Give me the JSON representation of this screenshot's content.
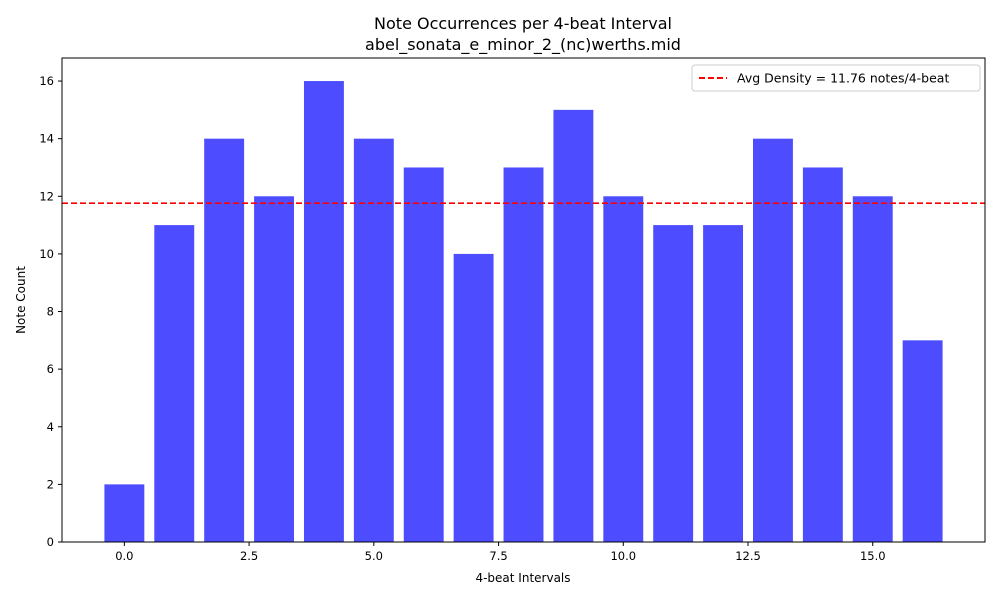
{
  "chart_data": {
    "type": "bar",
    "title": "Note Occurrences per 4-beat Interval",
    "subtitle": "abel_sonata_e_minor_2_(nc)werths.mid",
    "xlabel": "4-beat Intervals",
    "ylabel": "Note Count",
    "x": [
      0,
      1,
      2,
      3,
      4,
      5,
      6,
      7,
      8,
      9,
      10,
      11,
      12,
      13,
      14,
      15,
      16
    ],
    "values": [
      2,
      11,
      14,
      12,
      16,
      14,
      13,
      10,
      13,
      15,
      12,
      11,
      11,
      14,
      13,
      12,
      7
    ],
    "bar_color": "#4d4dff",
    "xlim": [
      -1.25,
      17.25
    ],
    "ylim": [
      0,
      16.8
    ],
    "xticks": [
      0.0,
      2.5,
      5.0,
      7.5,
      10.0,
      12.5,
      15.0
    ],
    "xtick_labels": [
      "0.0",
      "2.5",
      "5.0",
      "7.5",
      "10.0",
      "12.5",
      "15.0"
    ],
    "yticks": [
      0,
      2,
      4,
      6,
      8,
      10,
      12,
      14,
      16
    ],
    "ytick_labels": [
      "0",
      "2",
      "4",
      "6",
      "8",
      "10",
      "12",
      "14",
      "16"
    ],
    "avg_line": {
      "value": 11.76,
      "label": "Avg Density = 11.76 notes/4-beat",
      "color": "#ff0000",
      "style": "dashed"
    },
    "legend_position": "top-right",
    "grid": false
  }
}
